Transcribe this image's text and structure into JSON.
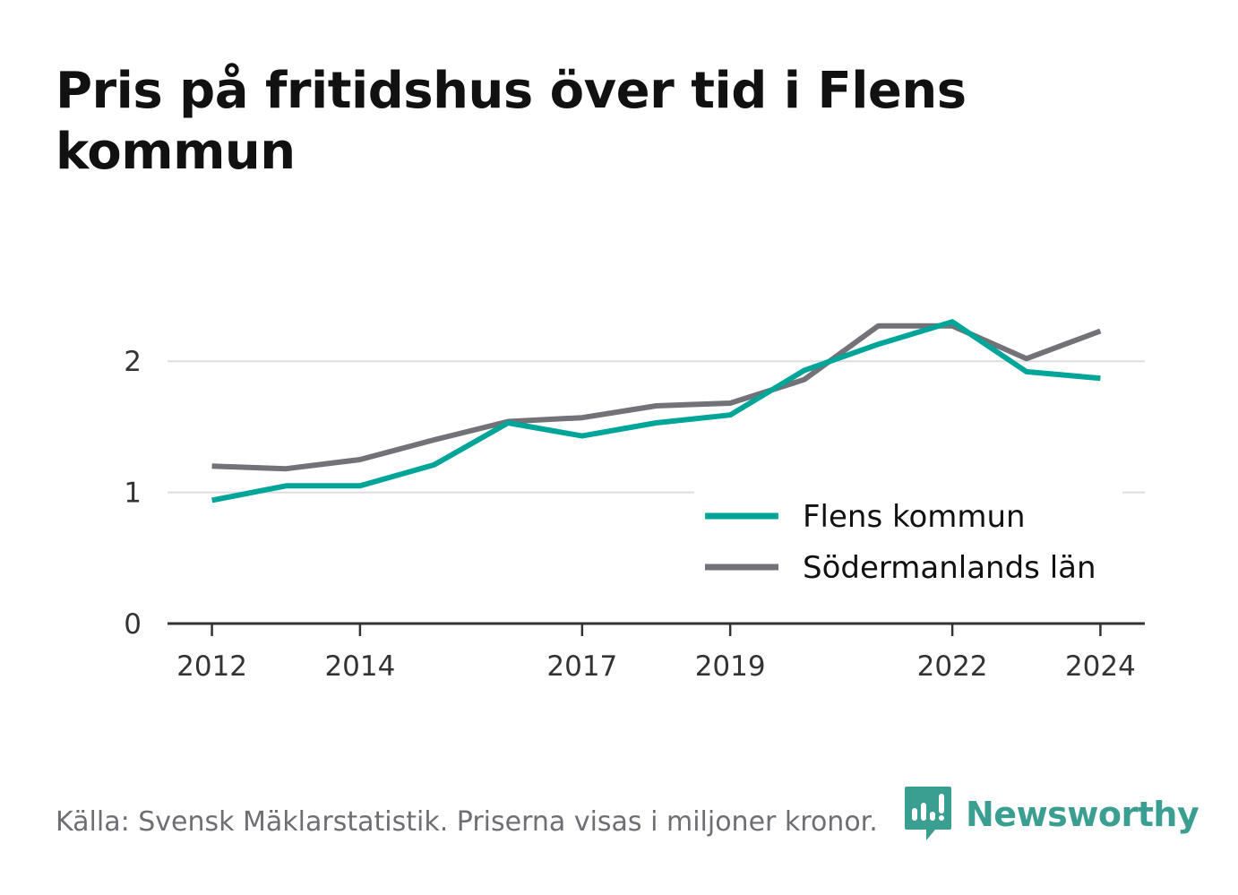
{
  "title": "Pris på fritidshus över tid i Flens kommun",
  "source": "Källa: Svensk Mäklarstatistik. Priserna visas i miljoner kronor.",
  "brand": {
    "name": "Newsworthy",
    "icon": "newsworthy-logo-icon",
    "color": "#3a9e91"
  },
  "chart_data": {
    "type": "line",
    "title": "Pris på fritidshus över tid i Flens kommun",
    "xlabel": "",
    "ylabel": "",
    "x": [
      2012,
      2013,
      2014,
      2015,
      2016,
      2017,
      2018,
      2019,
      2020,
      2021,
      2022,
      2023,
      2024
    ],
    "x_ticks": [
      "2012",
      "2014",
      "2017",
      "2019",
      "2022",
      "2024"
    ],
    "y_ticks": [
      "0",
      "1",
      "2"
    ],
    "ylim": [
      0,
      2.5
    ],
    "xlim": [
      2011.4,
      2024.6
    ],
    "grid": true,
    "legend_position": "bottom-right",
    "series": [
      {
        "name": "Flens kommun",
        "color": "#00a599",
        "values": [
          0.94,
          1.05,
          1.05,
          1.21,
          1.53,
          1.43,
          1.53,
          1.59,
          1.93,
          2.13,
          2.3,
          1.92,
          1.87
        ]
      },
      {
        "name": "Södermanlands län",
        "color": "#737278",
        "values": [
          1.2,
          1.18,
          1.25,
          1.4,
          1.54,
          1.57,
          1.66,
          1.68,
          1.86,
          2.27,
          2.27,
          2.02,
          2.23
        ]
      }
    ]
  }
}
